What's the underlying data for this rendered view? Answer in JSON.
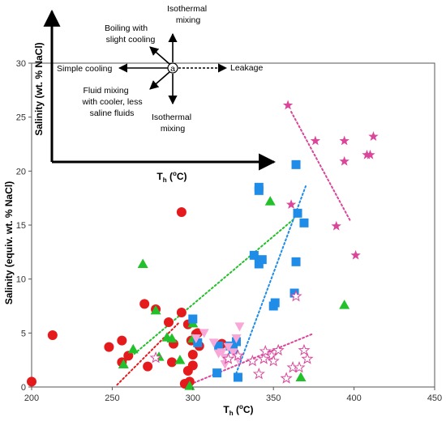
{
  "chart_data": {
    "type": "scatter",
    "xlabel": "T",
    "xlabel_sub": "h",
    "xlabel_unit": " (",
    "xlabel_deg": "o",
    "xlabel_end": "C)",
    "ylabel": "Salinity (equiv. wt. % NaCl)",
    "xlim": [
      200,
      450
    ],
    "ylim": [
      0,
      30
    ],
    "xticks": [
      "200",
      "250",
      "300",
      "350",
      "400",
      "450"
    ],
    "yticks": [
      "0",
      "5",
      "10",
      "15",
      "20",
      "25",
      "30"
    ],
    "grid": false,
    "series": [
      {
        "marker": "circle",
        "color": "#e41a1c",
        "points": [
          [
            200,
            0.5
          ],
          [
            213,
            4.8
          ],
          [
            248,
            3.7
          ],
          [
            256,
            4.3
          ],
          [
            260,
            2.9
          ],
          [
            256,
            2.3
          ],
          [
            270,
            7.7
          ],
          [
            272,
            1.9
          ],
          [
            277,
            7.2
          ],
          [
            285,
            6.0
          ],
          [
            287,
            2.3
          ],
          [
            288,
            4.0
          ],
          [
            293,
            6.9
          ],
          [
            293,
            16.2
          ],
          [
            297,
            5.8
          ],
          [
            299,
            4.3
          ],
          [
            297,
            1.5
          ],
          [
            298,
            0.5
          ],
          [
            300,
            3.0
          ],
          [
            300,
            2.0
          ],
          [
            295,
            0.3
          ],
          [
            302,
            4.9
          ],
          [
            303,
            5.0
          ],
          [
            304,
            3.8
          ],
          [
            318,
            4.0
          ]
        ]
      },
      {
        "marker": "triangle-up",
        "color": "#22c02a",
        "points": [
          [
            257,
            2.1
          ],
          [
            263,
            3.5
          ],
          [
            269,
            11.4
          ],
          [
            277,
            7.1
          ],
          [
            279,
            2.8
          ],
          [
            284,
            4.6
          ],
          [
            287,
            4.5
          ],
          [
            292,
            2.5
          ],
          [
            298,
            0.1
          ],
          [
            300,
            4.5
          ],
          [
            300,
            5.9
          ],
          [
            348,
            17.2
          ],
          [
            367,
            0.9
          ],
          [
            394,
            7.6
          ]
        ]
      },
      {
        "marker": "square",
        "color": "#1f8ce8",
        "points": [
          [
            300,
            6.3
          ],
          [
            303,
            4.1
          ],
          [
            315,
            1.3
          ],
          [
            316,
            3.8
          ],
          [
            323,
            3.8
          ],
          [
            325,
            3.5
          ],
          [
            327,
            4.2
          ],
          [
            328,
            0.9
          ],
          [
            338,
            12.2
          ],
          [
            341,
            18.5
          ],
          [
            341,
            18.2
          ],
          [
            341,
            11.4
          ],
          [
            343,
            11.8
          ],
          [
            350,
            7.5
          ],
          [
            351,
            7.8
          ],
          [
            363,
            8.7
          ],
          [
            364,
            11.6
          ],
          [
            365,
            16.1
          ],
          [
            364,
            20.6
          ],
          [
            369,
            15.2
          ]
        ]
      },
      {
        "marker": "triangle-down",
        "color": "#f7a8d8",
        "points": [
          [
            302,
            4.5
          ],
          [
            307,
            5.0
          ],
          [
            313,
            4.1
          ],
          [
            318,
            3.2
          ],
          [
            320,
            2.7
          ],
          [
            322,
            3.7
          ],
          [
            325,
            3.2
          ],
          [
            327,
            4.5
          ],
          [
            329,
            5.6
          ],
          [
            328,
            2.6
          ],
          [
            320,
            2.1
          ],
          [
            316,
            3.1
          ]
        ]
      },
      {
        "marker": "star-filled",
        "color": "#d9469a",
        "points": [
          [
            359,
            26.1
          ],
          [
            361,
            16.9
          ],
          [
            376,
            22.8
          ],
          [
            389,
            14.9
          ],
          [
            394,
            22.8
          ],
          [
            394,
            20.9
          ],
          [
            401,
            12.2
          ],
          [
            408,
            21.5
          ],
          [
            410,
            21.5
          ],
          [
            412,
            23.2
          ]
        ]
      },
      {
        "marker": "star-open",
        "color": "#d9469a",
        "points": [
          [
            277,
            2.7
          ],
          [
            322,
            2.6
          ],
          [
            328,
            2.9
          ],
          [
            337,
            2.4
          ],
          [
            341,
            1.2
          ],
          [
            344,
            2.6
          ],
          [
            345,
            3.3
          ],
          [
            349,
            2.9
          ],
          [
            350,
            2.4
          ],
          [
            353,
            3.4
          ],
          [
            358,
            0.8
          ],
          [
            362,
            1.8
          ],
          [
            364,
            8.4
          ],
          [
            366,
            1.8
          ],
          [
            369,
            3.4
          ],
          [
            371,
            2.6
          ]
        ]
      }
    ],
    "trendlines": [
      {
        "color": "#e41a1c",
        "from": [
          253,
          0.2
        ],
        "to": [
          291,
          5.9
        ]
      },
      {
        "color": "#22c02a",
        "from": [
          256,
          2.1
        ],
        "to": [
          363,
          15.6
        ]
      },
      {
        "color": "#1f8ce8",
        "from": [
          326,
          0.9
        ],
        "to": [
          370,
          18.6
        ]
      },
      {
        "color": "#d9469a",
        "from": [
          296,
          0.1
        ],
        "to": [
          374,
          4.9
        ]
      },
      {
        "color": "#d9469a",
        "from": [
          361,
          25.5
        ],
        "to": [
          398,
          15.3
        ]
      }
    ]
  },
  "inset": {
    "ylabel": "Salinity (wt. % NaCl)",
    "xlabel": "T",
    "xlabel_sub": "h",
    "xlabel_unit": " (",
    "xlabel_deg": "o",
    "xlabel_end": "C)",
    "center": "a",
    "arrows": {
      "isothermal_up": [
        "Isothermal",
        "mixing"
      ],
      "boiling": [
        "Boiling with",
        "slight cooling"
      ],
      "simple_cooling": "Simple cooling",
      "leakage": "Leakage",
      "fluid_mixing": [
        "Fluid mixing",
        "with cooler, less",
        "saline fluids"
      ],
      "isothermal_down": [
        "Isothermal",
        "mixing"
      ]
    }
  }
}
